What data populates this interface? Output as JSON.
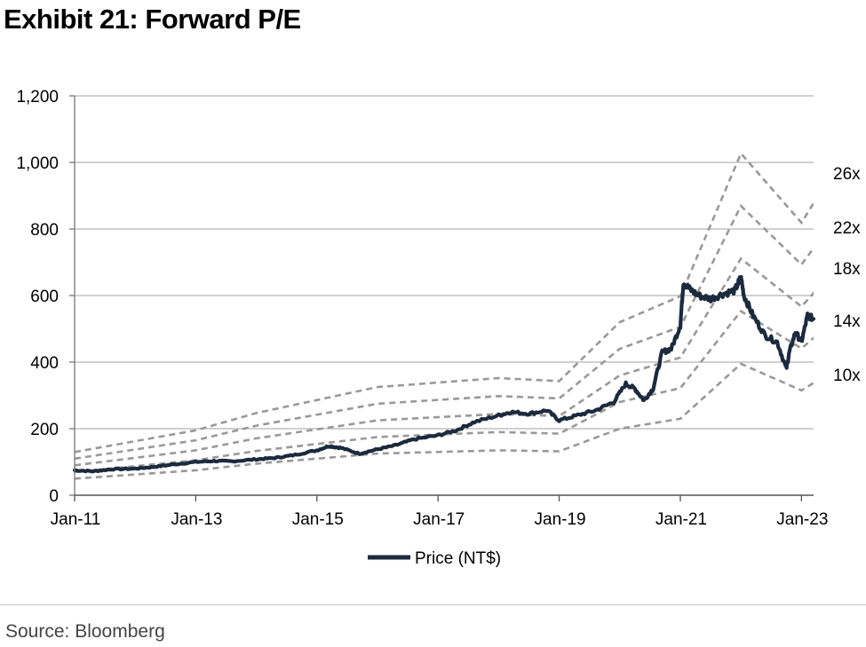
{
  "title": "Exhibit 21: Forward P/E",
  "source": "Source: Bloomberg",
  "chart_data": {
    "type": "line",
    "ylim": [
      0,
      1200
    ],
    "yticks": [
      0,
      200,
      400,
      600,
      800,
      1000,
      1200
    ],
    "ytick_labels": [
      "0",
      "200",
      "400",
      "600",
      "800",
      "1,000",
      "1,200"
    ],
    "x_range": [
      2011.0,
      2023.2
    ],
    "xticks": [
      2011,
      2013,
      2015,
      2017,
      2019,
      2021,
      2023
    ],
    "xtick_labels": [
      "Jan-11",
      "Jan-13",
      "Jan-15",
      "Jan-17",
      "Jan-19",
      "Jan-21",
      "Jan-23"
    ],
    "grid": true,
    "legend": "bottom-center",
    "colors": {
      "price": "#1b2a3d",
      "bands": "#999999",
      "grid": "#b3b3b3"
    },
    "series": [
      {
        "name": "Price (NT$)",
        "x": [
          2011.0,
          2011.3,
          2011.6,
          2012.0,
          2012.3,
          2012.6,
          2013.0,
          2013.3,
          2013.6,
          2014.0,
          2014.3,
          2014.6,
          2015.0,
          2015.2,
          2015.4,
          2015.7,
          2016.0,
          2016.3,
          2016.6,
          2017.0,
          2017.3,
          2017.6,
          2018.0,
          2018.2,
          2018.5,
          2018.8,
          2019.0,
          2019.3,
          2019.6,
          2019.9,
          2020.1,
          2020.25,
          2020.4,
          2020.55,
          2020.7,
          2020.85,
          2021.0,
          2021.05,
          2021.15,
          2021.3,
          2021.5,
          2021.7,
          2021.9,
          2022.0,
          2022.05,
          2022.2,
          2022.4,
          2022.6,
          2022.75,
          2022.8,
          2022.9,
          2023.0,
          2023.1,
          2023.2
        ],
        "y": [
          75,
          72,
          78,
          80,
          85,
          92,
          100,
          103,
          102,
          108,
          112,
          120,
          135,
          148,
          142,
          125,
          138,
          150,
          168,
          180,
          195,
          220,
          240,
          250,
          245,
          255,
          225,
          240,
          255,
          280,
          335,
          320,
          285,
          320,
          430,
          440,
          510,
          640,
          620,
          600,
          590,
          605,
          615,
          655,
          600,
          540,
          480,
          460,
          380,
          430,
          490,
          460,
          540,
          530
        ]
      },
      {
        "name": "10x",
        "x": [
          2011.0,
          2013.0,
          2014.0,
          2016.0,
          2018.0,
          2019.0,
          2020.0,
          2021.0,
          2022.0,
          2023.0,
          2023.4
        ],
        "y": [
          50,
          75,
          95,
          125,
          135,
          132,
          200,
          230,
          395,
          315,
          360
        ]
      },
      {
        "name": "14x",
        "x": [
          2011.0,
          2013.0,
          2014.0,
          2016.0,
          2018.0,
          2019.0,
          2020.0,
          2021.0,
          2022.0,
          2023.0,
          2023.4
        ],
        "y": [
          70,
          105,
          133,
          175,
          190,
          185,
          280,
          322,
          553,
          441,
          504
        ]
      },
      {
        "name": "18x",
        "x": [
          2011.0,
          2013.0,
          2014.0,
          2016.0,
          2018.0,
          2019.0,
          2020.0,
          2021.0,
          2022.0,
          2023.0,
          2023.4
        ],
        "y": [
          90,
          135,
          171,
          225,
          244,
          238,
          360,
          414,
          711,
          567,
          648
        ]
      },
      {
        "name": "22x",
        "x": [
          2011.0,
          2013.0,
          2014.0,
          2016.0,
          2018.0,
          2019.0,
          2020.0,
          2021.0,
          2022.0,
          2023.0,
          2023.4
        ],
        "y": [
          110,
          165,
          209,
          275,
          298,
          291,
          440,
          506,
          869,
          693,
          792
        ]
      },
      {
        "name": "26x",
        "x": [
          2011.0,
          2013.0,
          2014.0,
          2016.0,
          2018.0,
          2019.0,
          2020.0,
          2021.0,
          2022.0,
          2023.0,
          2023.4
        ],
        "y": [
          130,
          195,
          247,
          325,
          352,
          343,
          520,
          598,
          1027,
          819,
          936
        ]
      }
    ],
    "band_labels": [
      "26x",
      "22x",
      "18x",
      "14x",
      "10x"
    ],
    "legend_label": "Price (NT$)"
  }
}
